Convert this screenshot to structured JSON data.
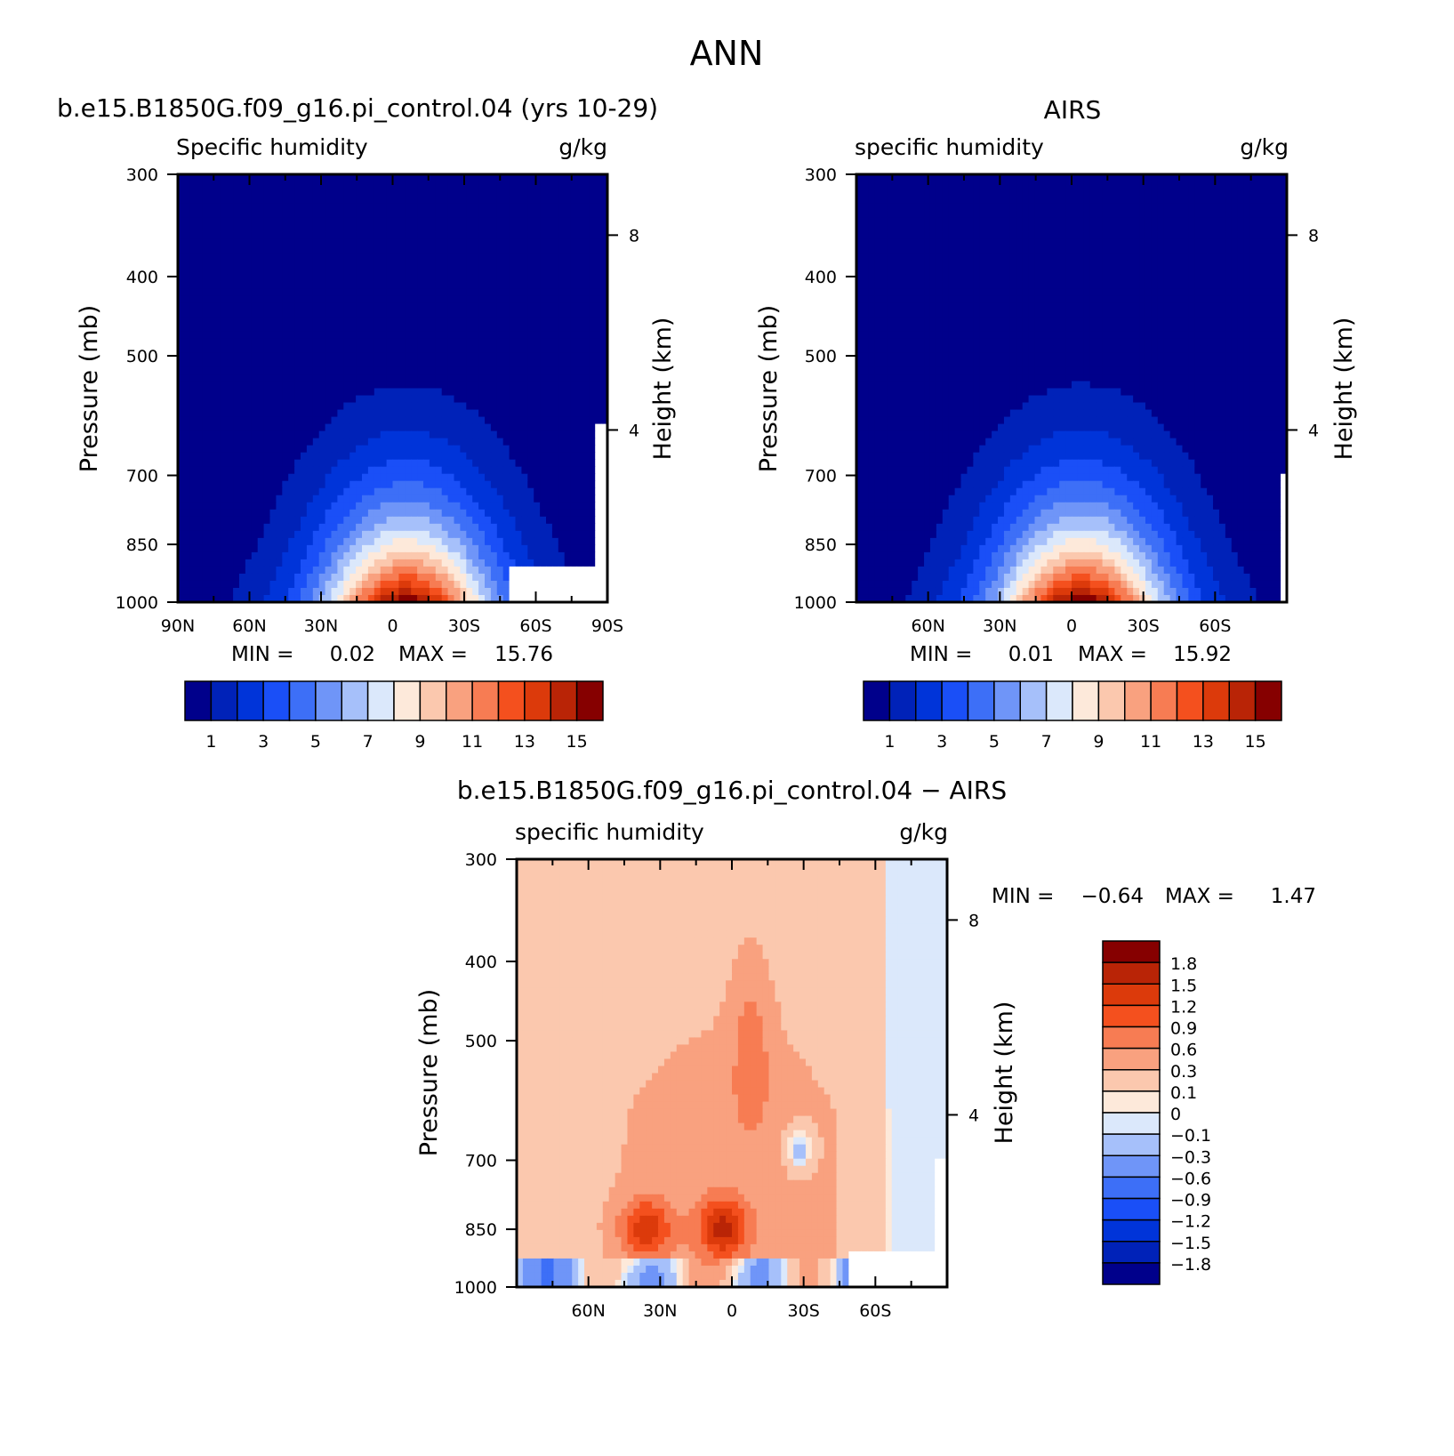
{
  "figure_title": "ANN",
  "colors": {
    "abs_scale": [
      "#00008b",
      "#0022b8",
      "#0034d9",
      "#1a4ff7",
      "#3d6ff7",
      "#6f95f8",
      "#a6c0fa",
      "#dbe8fb",
      "#fde9da",
      "#fbc8ae",
      "#f9a17f",
      "#f77c53",
      "#f4501e",
      "#dc3a0b",
      "#b92406",
      "#860000"
    ],
    "diff_scale": [
      "#00008b",
      "#0022b8",
      "#0034d9",
      "#1a4ff7",
      "#3d6ff7",
      "#6f95f8",
      "#a6c0fa",
      "#dbe8fb",
      "#fde9da",
      "#fbc8ae",
      "#f9a17f",
      "#f77c53",
      "#f4501e",
      "#dc3a0b",
      "#b92406",
      "#860000"
    ]
  },
  "chart_data": [
    {
      "type": "heatmap",
      "title": "b.e15.B1850G.f09_g16.pi_control.04 (yrs 10-29)",
      "left_label": "Specific humidity",
      "units": "g/kg",
      "ylabel": "Pressure (mb)",
      "ylabel_right": "Height (km)",
      "y_ticks": [
        "300",
        "400",
        "500",
        "700",
        "850",
        "1000"
      ],
      "y_right_ticks": [
        "8",
        "4"
      ],
      "x_ticks": [
        "90N",
        "60N",
        "30N",
        "0",
        "30S",
        "60S",
        "90S"
      ],
      "min_label": "MIN =",
      "min_value": "0.02",
      "max_label": "MAX =",
      "max_value": "15.76",
      "colorbar_labels": [
        "1",
        "3",
        "5",
        "7",
        "9",
        "11",
        "13",
        "15"
      ],
      "x_range": [
        -90,
        90
      ],
      "y_range": [
        1000,
        300
      ],
      "peak_lat": 6,
      "peak_value": 15.76
    },
    {
      "type": "heatmap",
      "title": "AIRS",
      "left_label": "specific humidity",
      "units": "g/kg",
      "ylabel": "Pressure (mb)",
      "ylabel_right": "Height (km)",
      "y_ticks": [
        "300",
        "400",
        "500",
        "700",
        "850",
        "1000"
      ],
      "y_right_ticks": [
        "8",
        "4"
      ],
      "x_ticks": [
        "60N",
        "30N",
        "0",
        "30S",
        "60S"
      ],
      "min_label": "MIN =",
      "min_value": "0.01",
      "max_label": "MAX =",
      "max_value": "15.92",
      "colorbar_labels": [
        "1",
        "3",
        "5",
        "7",
        "9",
        "11",
        "13",
        "15"
      ],
      "x_range": [
        -90,
        90
      ],
      "y_range": [
        1000,
        300
      ],
      "peak_lat": 4,
      "peak_value": 15.92
    },
    {
      "type": "heatmap",
      "title": "b.e15.B1850G.f09_g16.pi_control.04 − AIRS",
      "left_label": "specific humidity",
      "units": "g/kg",
      "ylabel": "Pressure (mb)",
      "ylabel_right": "Height (km)",
      "y_ticks": [
        "300",
        "400",
        "500",
        "700",
        "850",
        "1000"
      ],
      "y_right_ticks": [
        "8",
        "4"
      ],
      "x_ticks": [
        "60N",
        "30N",
        "0",
        "30S",
        "60S"
      ],
      "min_label": "MIN =",
      "min_value": "−0.64",
      "max_label": "MAX =",
      "max_value": "1.47",
      "colorbar_labels": [
        "1.8",
        "1.5",
        "1.2",
        "0.9",
        "0.6",
        "0.3",
        "0.1",
        "0",
        "−0.1",
        "−0.3",
        "−0.6",
        "−0.9",
        "−1.2",
        "−1.5",
        "−1.8"
      ],
      "x_range": [
        -90,
        90
      ],
      "y_range": [
        1000,
        300
      ]
    }
  ]
}
